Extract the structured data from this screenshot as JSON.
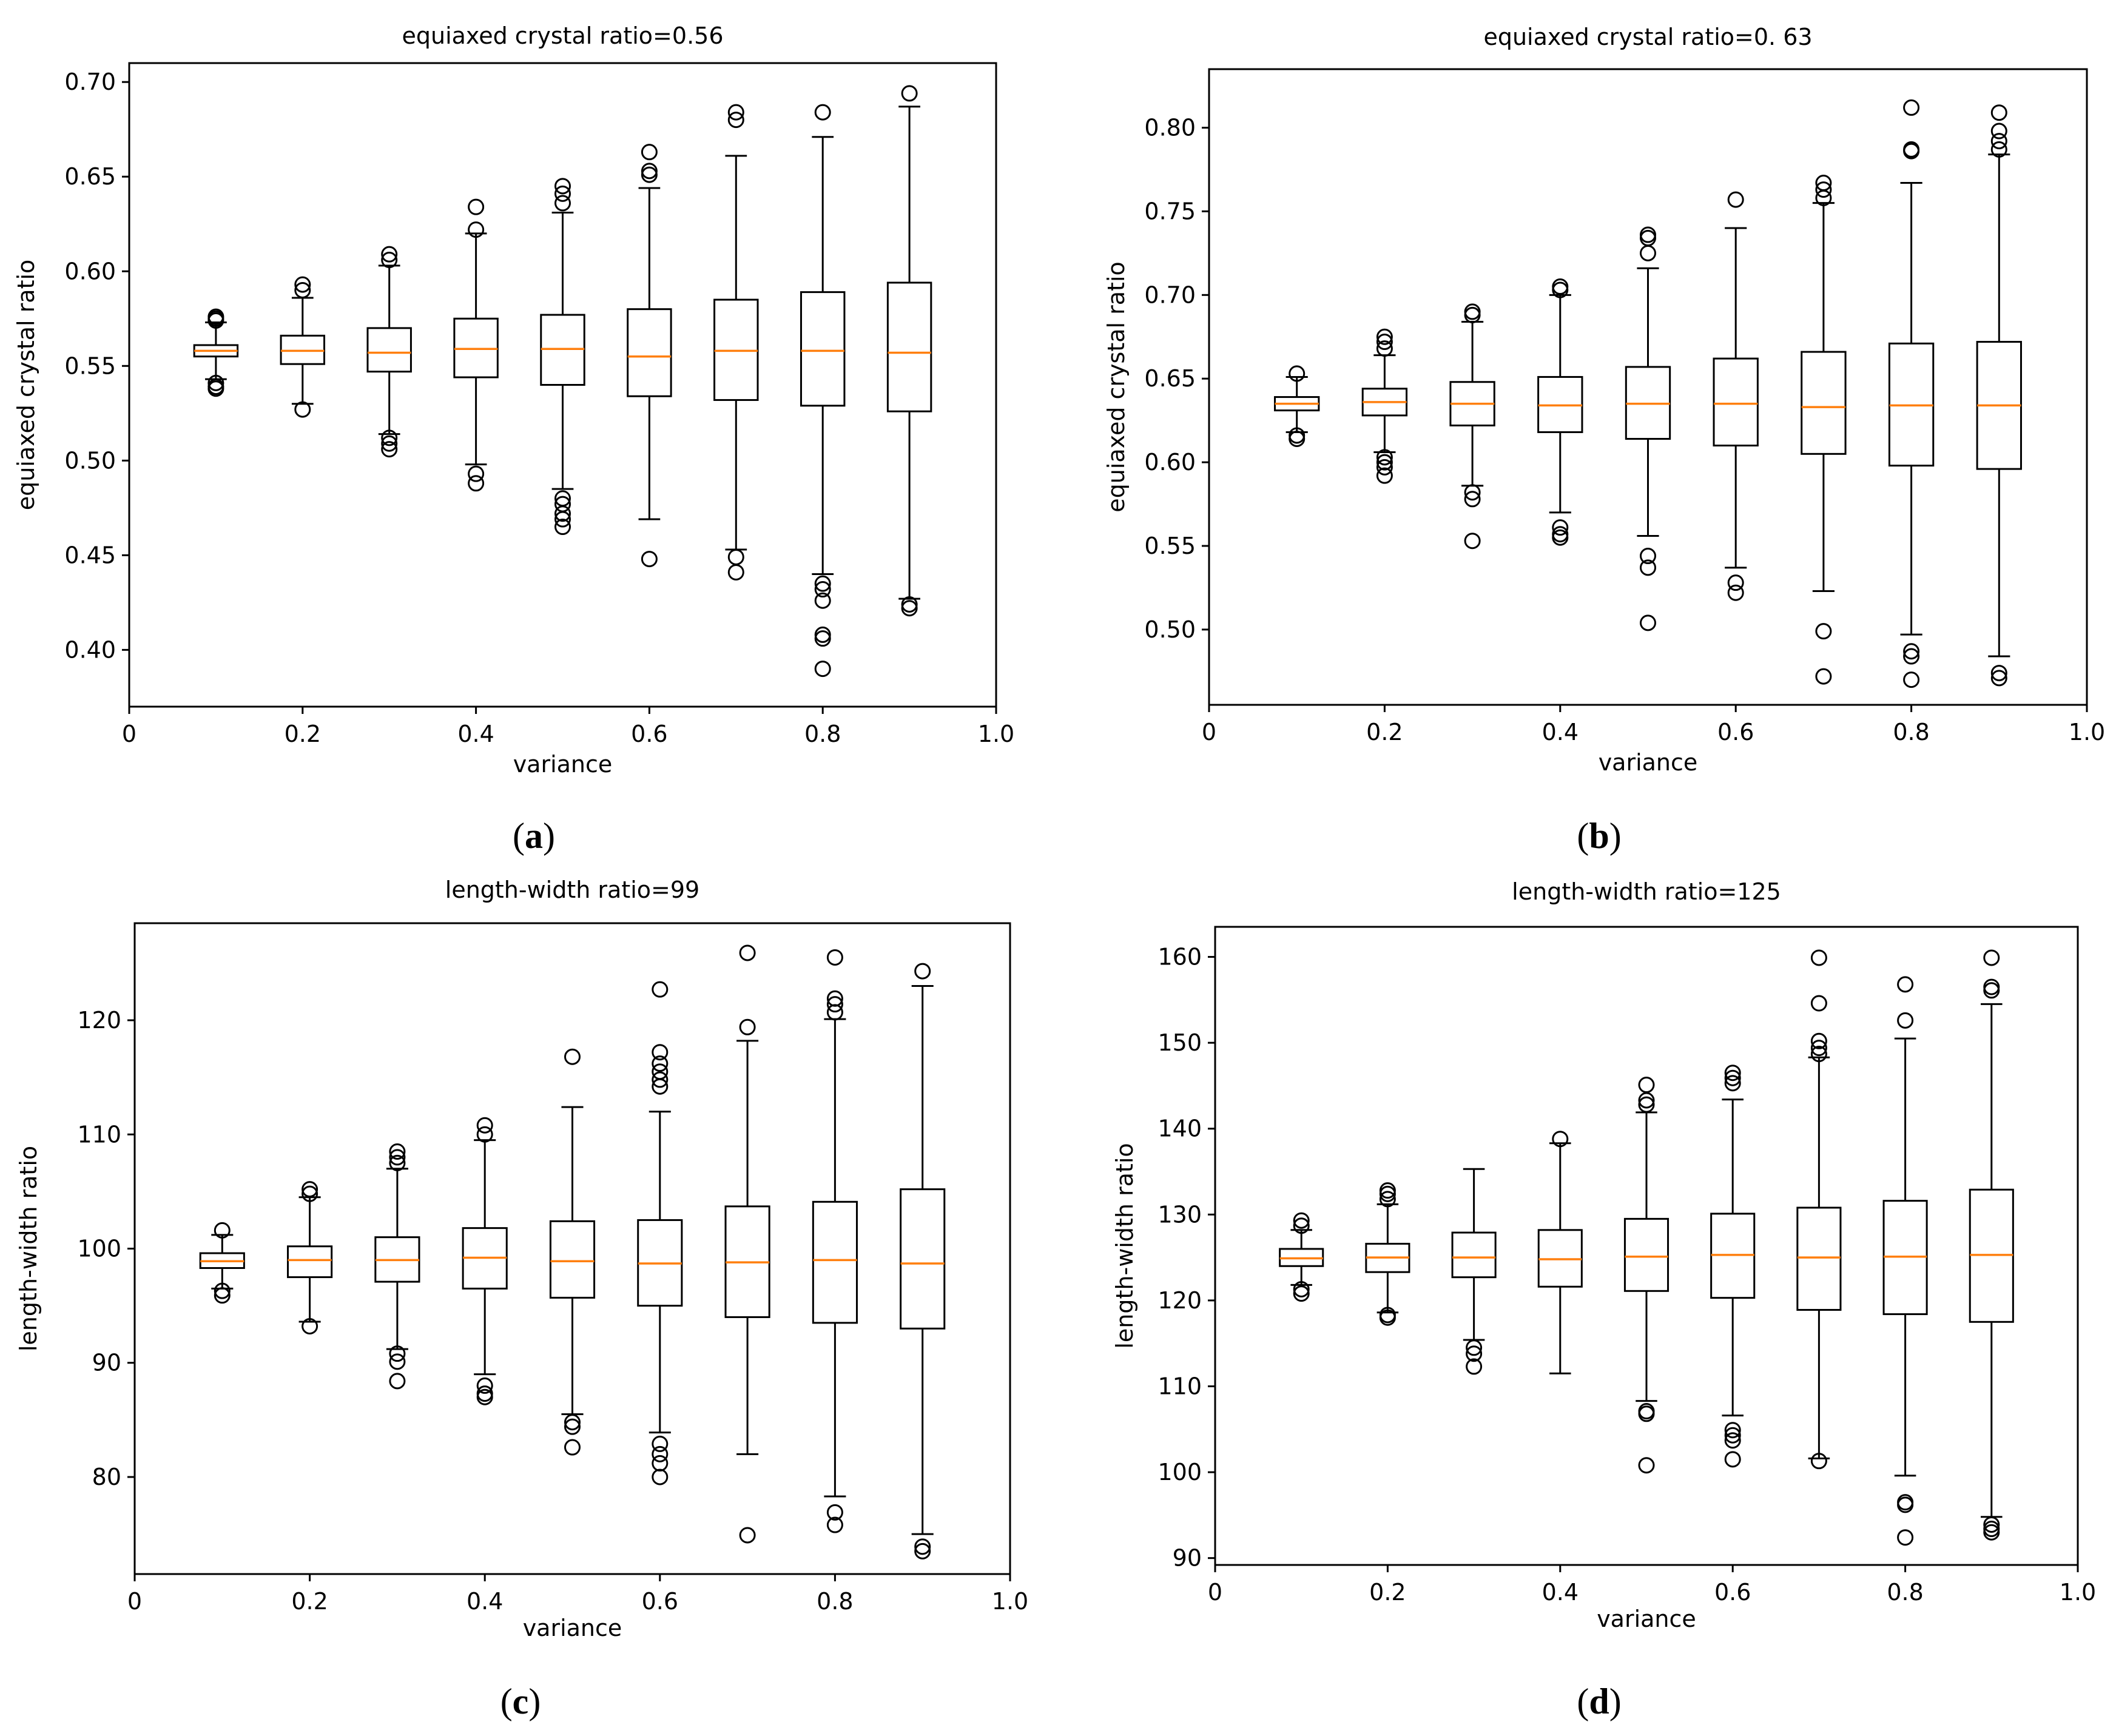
{
  "figure": {
    "panels": [
      {
        "letter": "a",
        "letter_text": "(a)"
      },
      {
        "letter": "b",
        "letter_text": "(b)"
      },
      {
        "letter": "c",
        "letter_text": "(c)"
      },
      {
        "letter": "d",
        "letter_text": "(d)"
      }
    ]
  },
  "colors": {
    "box": "#000000",
    "median": "#ff7f0e",
    "outlier": "#000000",
    "background": "#ffffff"
  },
  "chart_data": [
    {
      "type": "boxplot",
      "title": "equiaxed crystal ratio=0.56",
      "xlabel": "variance",
      "ylabel": "equiaxed crystal ratio",
      "xlim": [
        0,
        1.0
      ],
      "ylim": [
        0.37,
        0.71
      ],
      "xticks": [
        0,
        0.2,
        0.4,
        0.6,
        0.8,
        1.0
      ],
      "xtick_labels": [
        "0",
        "0.2",
        "0.4",
        "0.6",
        "0.8",
        "1.0"
      ],
      "yticks": [
        0.4,
        0.45,
        0.5,
        0.55,
        0.6,
        0.65,
        0.7
      ],
      "ytick_labels": [
        "0.40",
        "0.45",
        "0.50",
        "0.55",
        "0.60",
        "0.65",
        "0.70"
      ],
      "grid": false,
      "boxes": [
        {
          "x": 0.1,
          "whislo": 0.543,
          "q1": 0.555,
          "med": 0.558,
          "q3": 0.561,
          "whishi": 0.573,
          "fliers": [
            0.574,
            0.575,
            0.576,
            0.541,
            0.539,
            0.538
          ]
        },
        {
          "x": 0.2,
          "whislo": 0.53,
          "q1": 0.551,
          "med": 0.558,
          "q3": 0.566,
          "whishi": 0.586,
          "fliers": [
            0.59,
            0.593,
            0.527
          ]
        },
        {
          "x": 0.3,
          "whislo": 0.514,
          "q1": 0.547,
          "med": 0.557,
          "q3": 0.57,
          "whishi": 0.603,
          "fliers": [
            0.606,
            0.609,
            0.512,
            0.509,
            0.506
          ]
        },
        {
          "x": 0.4,
          "whislo": 0.498,
          "q1": 0.544,
          "med": 0.559,
          "q3": 0.575,
          "whishi": 0.62,
          "fliers": [
            0.622,
            0.634,
            0.493,
            0.488
          ]
        },
        {
          "x": 0.5,
          "whislo": 0.485,
          "q1": 0.54,
          "med": 0.559,
          "q3": 0.577,
          "whishi": 0.631,
          "fliers": [
            0.636,
            0.641,
            0.645,
            0.48,
            0.477,
            0.472,
            0.469,
            0.465
          ]
        },
        {
          "x": 0.6,
          "whislo": 0.469,
          "q1": 0.534,
          "med": 0.555,
          "q3": 0.58,
          "whishi": 0.644,
          "fliers": [
            0.651,
            0.653,
            0.663,
            0.448
          ]
        },
        {
          "x": 0.7,
          "whislo": 0.453,
          "q1": 0.532,
          "med": 0.558,
          "q3": 0.585,
          "whishi": 0.661,
          "fliers": [
            0.68,
            0.684,
            0.449,
            0.441
          ]
        },
        {
          "x": 0.8,
          "whislo": 0.44,
          "q1": 0.529,
          "med": 0.558,
          "q3": 0.589,
          "whishi": 0.671,
          "fliers": [
            0.684,
            0.435,
            0.432,
            0.426,
            0.408,
            0.406,
            0.39
          ]
        },
        {
          "x": 0.9,
          "whislo": 0.427,
          "q1": 0.526,
          "med": 0.557,
          "q3": 0.594,
          "whishi": 0.687,
          "fliers": [
            0.694,
            0.424,
            0.422
          ]
        }
      ]
    },
    {
      "type": "boxplot",
      "title": "equiaxed crystal ratio=0. 63",
      "xlabel": "variance",
      "ylabel": "equiaxed crystal ratio",
      "xlim": [
        0,
        1.0
      ],
      "ylim": [
        0.455,
        0.835
      ],
      "xticks": [
        0,
        0.2,
        0.4,
        0.6,
        0.8,
        1.0
      ],
      "xtick_labels": [
        "0",
        "0.2",
        "0.4",
        "0.6",
        "0.8",
        "1.0"
      ],
      "yticks": [
        0.5,
        0.55,
        0.6,
        0.65,
        0.7,
        0.75,
        0.8
      ],
      "ytick_labels": [
        "0.50",
        "0.55",
        "0.60",
        "0.65",
        "0.70",
        "0.75",
        "0.80"
      ],
      "grid": false,
      "boxes": [
        {
          "x": 0.1,
          "whislo": 0.618,
          "q1": 0.631,
          "med": 0.635,
          "q3": 0.639,
          "whishi": 0.651,
          "fliers": [
            0.653,
            0.616,
            0.614
          ]
        },
        {
          "x": 0.2,
          "whislo": 0.606,
          "q1": 0.628,
          "med": 0.636,
          "q3": 0.644,
          "whishi": 0.664,
          "fliers": [
            0.668,
            0.672,
            0.675,
            0.603,
            0.6,
            0.597,
            0.592
          ]
        },
        {
          "x": 0.3,
          "whislo": 0.586,
          "q1": 0.622,
          "med": 0.635,
          "q3": 0.648,
          "whishi": 0.684,
          "fliers": [
            0.688,
            0.69,
            0.582,
            0.578,
            0.553
          ]
        },
        {
          "x": 0.4,
          "whislo": 0.57,
          "q1": 0.618,
          "med": 0.634,
          "q3": 0.651,
          "whishi": 0.7,
          "fliers": [
            0.703,
            0.705,
            0.561,
            0.557,
            0.555
          ]
        },
        {
          "x": 0.5,
          "whislo": 0.556,
          "q1": 0.614,
          "med": 0.635,
          "q3": 0.657,
          "whishi": 0.716,
          "fliers": [
            0.725,
            0.734,
            0.736,
            0.544,
            0.537,
            0.504
          ]
        },
        {
          "x": 0.6,
          "whislo": 0.537,
          "q1": 0.61,
          "med": 0.635,
          "q3": 0.662,
          "whishi": 0.74,
          "fliers": [
            0.757,
            0.528,
            0.522
          ]
        },
        {
          "x": 0.7,
          "whislo": 0.523,
          "q1": 0.605,
          "med": 0.633,
          "q3": 0.666,
          "whishi": 0.755,
          "fliers": [
            0.758,
            0.763,
            0.767,
            0.499,
            0.472
          ]
        },
        {
          "x": 0.8,
          "whislo": 0.497,
          "q1": 0.598,
          "med": 0.634,
          "q3": 0.671,
          "whishi": 0.767,
          "fliers": [
            0.786,
            0.787,
            0.812,
            0.487,
            0.484,
            0.47
          ]
        },
        {
          "x": 0.9,
          "whislo": 0.484,
          "q1": 0.596,
          "med": 0.634,
          "q3": 0.672,
          "whishi": 0.784,
          "fliers": [
            0.787,
            0.792,
            0.798,
            0.809,
            0.474,
            0.471
          ]
        }
      ]
    },
    {
      "type": "boxplot",
      "title": "length-width ratio=99",
      "xlabel": "variance",
      "ylabel": "length-width ratio",
      "xlim": [
        0,
        1.0
      ],
      "ylim": [
        71.5,
        128.5
      ],
      "xticks": [
        0,
        0.2,
        0.4,
        0.6,
        0.8,
        1.0
      ],
      "xtick_labels": [
        "0",
        "0.2",
        "0.4",
        "0.6",
        "0.8",
        "1.0"
      ],
      "yticks": [
        80,
        90,
        100,
        110,
        120
      ],
      "ytick_labels": [
        "80",
        "90",
        "100",
        "110",
        "120"
      ],
      "grid": false,
      "boxes": [
        {
          "x": 0.1,
          "whislo": 96.5,
          "q1": 98.3,
          "med": 98.9,
          "q3": 99.6,
          "whishi": 101.2,
          "fliers": [
            101.6,
            96.3,
            95.9
          ]
        },
        {
          "x": 0.2,
          "whislo": 93.6,
          "q1": 97.5,
          "med": 99.0,
          "q3": 100.2,
          "whishi": 104.5,
          "fliers": [
            104.8,
            105.2,
            93.2
          ]
        },
        {
          "x": 0.3,
          "whislo": 91.2,
          "q1": 97.1,
          "med": 99.0,
          "q3": 101.0,
          "whishi": 107.0,
          "fliers": [
            107.5,
            108.0,
            108.5,
            90.8,
            90.1,
            88.4
          ]
        },
        {
          "x": 0.4,
          "whislo": 89.0,
          "q1": 96.5,
          "med": 99.2,
          "q3": 101.8,
          "whishi": 109.5,
          "fliers": [
            110.0,
            110.8,
            88.0,
            87.3,
            87.0
          ]
        },
        {
          "x": 0.5,
          "whislo": 85.5,
          "q1": 95.7,
          "med": 98.9,
          "q3": 102.4,
          "whishi": 112.4,
          "fliers": [
            116.8,
            84.8,
            84.4,
            82.6
          ]
        },
        {
          "x": 0.6,
          "whislo": 83.9,
          "q1": 95.0,
          "med": 98.7,
          "q3": 102.5,
          "whishi": 112.0,
          "fliers": [
            114.2,
            114.8,
            115.5,
            116.2,
            117.2,
            122.7,
            82.9,
            82.0,
            81.2,
            80.0
          ]
        },
        {
          "x": 0.7,
          "whislo": 82.0,
          "q1": 94.0,
          "med": 98.8,
          "q3": 103.7,
          "whishi": 118.2,
          "fliers": [
            119.4,
            125.9,
            74.9
          ]
        },
        {
          "x": 0.8,
          "whislo": 78.3,
          "q1": 93.5,
          "med": 99.0,
          "q3": 104.1,
          "whishi": 120.1,
          "fliers": [
            120.7,
            121.4,
            121.9,
            125.5,
            76.9,
            75.8
          ]
        },
        {
          "x": 0.9,
          "whislo": 75.0,
          "q1": 93.0,
          "med": 98.7,
          "q3": 105.2,
          "whishi": 123.0,
          "fliers": [
            124.3,
            73.9,
            73.5
          ]
        }
      ]
    },
    {
      "type": "boxplot",
      "title": "length-width ratio=125",
      "xlabel": "variance",
      "ylabel": "length-width ratio",
      "xlim": [
        0,
        1.0
      ],
      "ylim": [
        89.2,
        163.5
      ],
      "xticks": [
        0,
        0.2,
        0.4,
        0.6,
        0.8,
        1.0
      ],
      "xtick_labels": [
        "0",
        "0.2",
        "0.4",
        "0.6",
        "0.8",
        "1.0"
      ],
      "yticks": [
        90,
        100,
        110,
        120,
        130,
        140,
        150,
        160
      ],
      "ytick_labels": [
        "90",
        "100",
        "110",
        "120",
        "130",
        "140",
        "150",
        "160"
      ],
      "grid": false,
      "boxes": [
        {
          "x": 0.1,
          "whislo": 121.8,
          "q1": 124.0,
          "med": 124.9,
          "q3": 126.0,
          "whishi": 128.2,
          "fliers": [
            128.7,
            129.3,
            121.3,
            120.8
          ]
        },
        {
          "x": 0.2,
          "whislo": 118.6,
          "q1": 123.3,
          "med": 125.0,
          "q3": 126.6,
          "whishi": 131.2,
          "fliers": [
            131.8,
            132.4,
            132.8,
            118.3,
            118.0
          ]
        },
        {
          "x": 0.3,
          "whislo": 115.4,
          "q1": 122.7,
          "med": 125.0,
          "q3": 127.9,
          "whishi": 135.3,
          "fliers": [
            114.5,
            113.8,
            112.3
          ]
        },
        {
          "x": 0.4,
          "whislo": 111.5,
          "q1": 121.6,
          "med": 124.8,
          "q3": 128.2,
          "whishi": 138.3,
          "fliers": [
            138.8
          ]
        },
        {
          "x": 0.5,
          "whislo": 108.3,
          "q1": 121.1,
          "med": 125.1,
          "q3": 129.5,
          "whishi": 141.9,
          "fliers": [
            142.8,
            143.3,
            145.1,
            107.1,
            106.8,
            100.8
          ]
        },
        {
          "x": 0.6,
          "whislo": 106.6,
          "q1": 120.3,
          "med": 125.3,
          "q3": 130.1,
          "whishi": 143.4,
          "fliers": [
            145.3,
            145.9,
            146.5,
            104.9,
            104.3,
            103.7,
            101.5
          ]
        },
        {
          "x": 0.7,
          "whislo": 101.6,
          "q1": 118.9,
          "med": 125.0,
          "q3": 130.8,
          "whishi": 148.3,
          "fliers": [
            148.7,
            149.4,
            150.2,
            154.6,
            159.9,
            101.3
          ]
        },
        {
          "x": 0.8,
          "whislo": 99.6,
          "q1": 118.4,
          "med": 125.1,
          "q3": 131.6,
          "whishi": 150.5,
          "fliers": [
            152.6,
            156.8,
            96.5,
            96.2,
            92.4
          ]
        },
        {
          "x": 0.9,
          "whislo": 94.8,
          "q1": 117.5,
          "med": 125.3,
          "q3": 132.9,
          "whishi": 154.5,
          "fliers": [
            156.1,
            156.5,
            159.9,
            93.9,
            93.4,
            93.0
          ]
        }
      ]
    }
  ]
}
